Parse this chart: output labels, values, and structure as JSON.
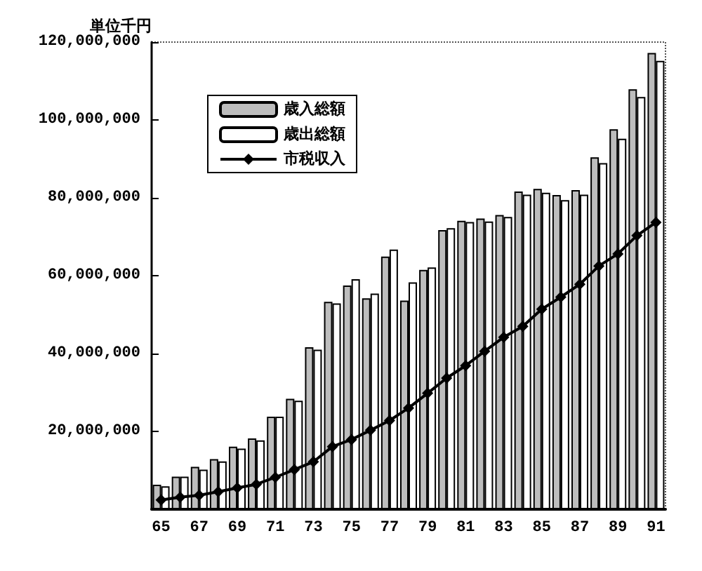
{
  "chart_data": {
    "type": "bar",
    "ylabel": "単位千円",
    "categories": [
      "65",
      null,
      "67",
      null,
      "69",
      null,
      "71",
      null,
      "73",
      null,
      "75",
      null,
      "77",
      null,
      "79",
      null,
      "81",
      null,
      "83",
      null,
      "85",
      null,
      "87",
      null,
      "89",
      null,
      "91"
    ],
    "series": [
      {
        "name": "歳入総額",
        "color": "#bdbdbd",
        "values": [
          6300000,
          8400000,
          10900000,
          12900000,
          16100000,
          18200000,
          23800000,
          28400000,
          41600000,
          53300000,
          57500000,
          54200000,
          64900000,
          53600000,
          61500000,
          71700000,
          74100000,
          74700000,
          75600000,
          81600000,
          82300000,
          80700000,
          82000000,
          90400000,
          97600000,
          107900000,
          117200000
        ]
      },
      {
        "name": "歳出総額",
        "color": "#ffffff",
        "values": [
          5900000,
          8400000,
          10200000,
          12300000,
          15600000,
          17700000,
          23800000,
          27900000,
          41000000,
          52900000,
          59100000,
          55400000,
          66700000,
          58300000,
          62100000,
          72200000,
          73800000,
          73900000,
          75100000,
          80800000,
          81300000,
          79400000,
          80800000,
          88900000,
          95200000,
          105900000,
          115200000
        ]
      },
      {
        "name": "市税収入",
        "type": "line",
        "color": "#000000",
        "marker": "diamond",
        "values": [
          2400000,
          3100000,
          3600000,
          4500000,
          5500000,
          6400000,
          8200000,
          10200000,
          12200000,
          16100000,
          17900000,
          20300000,
          22800000,
          26000000,
          29800000,
          33700000,
          36900000,
          40600000,
          44200000,
          47000000,
          51400000,
          54500000,
          57800000,
          62500000,
          65600000,
          70300000,
          73700000
        ]
      }
    ],
    "ylim": [
      0,
      120000000
    ],
    "yticks": [
      {
        "value": 0,
        "label": null
      },
      {
        "value": 20000000,
        "label": "20,000,000"
      },
      {
        "value": 40000000,
        "label": "40,000,000"
      },
      {
        "value": 60000000,
        "label": "60,000,000"
      },
      {
        "value": 80000000,
        "label": "80,000,000"
      },
      {
        "value": 100000000,
        "label": "100,000,000"
      },
      {
        "value": 120000000,
        "label": "120,000,000"
      }
    ],
    "grid": false,
    "legend": "top left"
  }
}
